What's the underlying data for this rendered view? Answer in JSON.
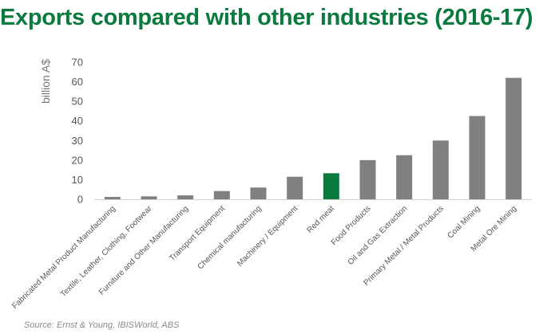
{
  "chart_data": {
    "type": "bar",
    "title": "Exports compared with other industries (2016-17)",
    "xlabel": "",
    "ylabel": "billion A$",
    "ylim": [
      0,
      70
    ],
    "yticks": [
      0,
      10,
      20,
      30,
      40,
      50,
      60,
      70
    ],
    "grid": false,
    "legend": "none",
    "categories": [
      "Fabricated Metal Product Manufacturing",
      "Textile, Leather, Clothing, Footwear",
      "Furniture and Other Manufacturing",
      "Transport Equipment",
      "Chemical manufacturing",
      "Machinery / Equipment",
      "Red meat",
      "Food Products",
      "Oil and Gas Extraction",
      "Primary Metal / Metal Products",
      "Coal Mining",
      "Metal Ore Mining"
    ],
    "values": [
      1.2,
      1.5,
      2.0,
      4.2,
      6.0,
      11.5,
      13.3,
      20.0,
      22.5,
      30.0,
      42.5,
      62.0
    ],
    "highlight_category": "Red meat",
    "colors": {
      "bar": "#808080",
      "highlight": "#0b7a3e",
      "title": "#0b7a3e"
    }
  },
  "source": "Source: Ernst & Young, IBISWorld, ABS"
}
